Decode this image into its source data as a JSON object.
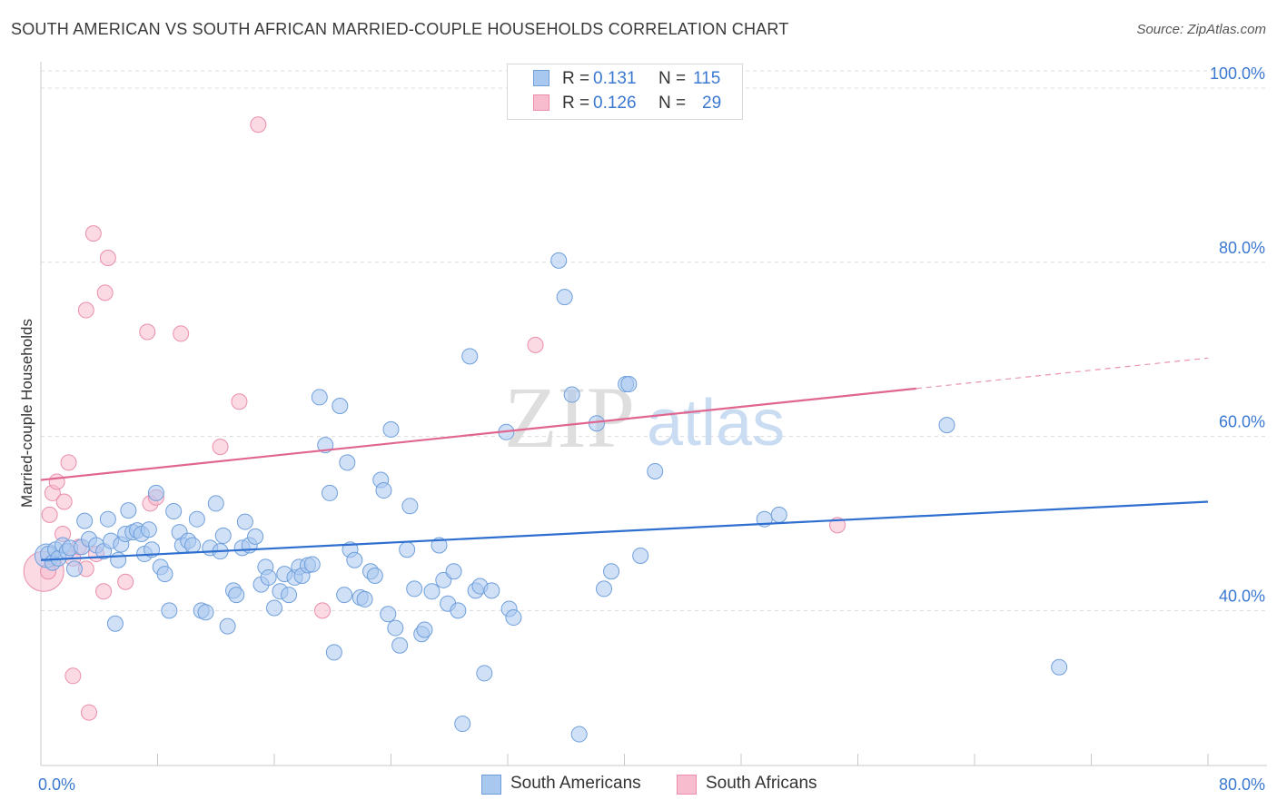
{
  "title": "SOUTH AMERICAN VS SOUTH AFRICAN MARRIED-COUPLE HOUSEHOLDS CORRELATION CHART",
  "source": "Source: ZipAtlas.com",
  "watermark": {
    "zip": "ZIP",
    "atlas": "atlas"
  },
  "legend": {
    "r_label": "R =",
    "n_label": "N =",
    "series": [
      {
        "r": "0.131",
        "n": "115"
      },
      {
        "r": "0.126",
        "n": "29"
      }
    ]
  },
  "colors": {
    "blue_fill": "#a9c8f0",
    "blue_stroke": "#6f9fdb",
    "blue_line": "#2f6fcf",
    "pink_fill": "#f7bccd",
    "pink_stroke": "#ea8eab",
    "pink_line": "#e0668f",
    "axis_label": "#3b78d0"
  },
  "chart_data": {
    "type": "scatter",
    "title": "SOUTH AMERICAN VS SOUTH AFRICAN MARRIED-COUPLE HOUSEHOLDS CORRELATION CHART",
    "xlabel": "",
    "ylabel": "Married-couple Households",
    "xlim": [
      0,
      80
    ],
    "ylim": [
      22,
      103
    ],
    "x_tick_labels": [
      "0.0%",
      "80.0%"
    ],
    "y_ticks": [
      40,
      60,
      80,
      100
    ],
    "y_tick_labels": [
      "40.0%",
      "60.0%",
      "80.0%",
      "100.0%"
    ],
    "grid": true,
    "legend_position": "top-center",
    "series": [
      {
        "name": "South Americans",
        "r": 0.131,
        "n": 115,
        "trend": {
          "x0": 0,
          "y0": 45.8,
          "x1": 80,
          "y1": 52.5,
          "solid_to": 80
        },
        "points": [
          [
            0.5,
            46.5
          ],
          [
            0.8,
            45.5
          ],
          [
            1.0,
            47
          ],
          [
            1.2,
            46
          ],
          [
            1.5,
            47.5
          ],
          [
            1.8,
            46.8
          ],
          [
            2.0,
            47.2
          ],
          [
            2.3,
            44.8
          ],
          [
            2.8,
            47.3
          ],
          [
            3.0,
            50.3
          ],
          [
            3.3,
            48.2
          ],
          [
            3.8,
            47.5
          ],
          [
            4.3,
            46.8
          ],
          [
            4.6,
            50.5
          ],
          [
            4.8,
            48
          ],
          [
            5.1,
            38.5
          ],
          [
            5.3,
            45.8
          ],
          [
            5.5,
            47.6
          ],
          [
            5.8,
            48.8
          ],
          [
            6.0,
            51.5
          ],
          [
            6.3,
            49
          ],
          [
            6.6,
            49.2
          ],
          [
            6.9,
            48.8
          ],
          [
            7.1,
            46.5
          ],
          [
            7.4,
            49.3
          ],
          [
            7.6,
            47
          ],
          [
            7.9,
            53.5
          ],
          [
            8.2,
            45
          ],
          [
            8.5,
            44.2
          ],
          [
            8.8,
            40
          ],
          [
            9.1,
            51.4
          ],
          [
            9.5,
            49
          ],
          [
            9.7,
            47.5
          ],
          [
            10.1,
            48
          ],
          [
            10.4,
            47.5
          ],
          [
            10.7,
            50.5
          ],
          [
            11.0,
            40
          ],
          [
            11.3,
            39.8
          ],
          [
            11.6,
            47.2
          ],
          [
            12.0,
            52.3
          ],
          [
            12.3,
            46.8
          ],
          [
            12.5,
            48.6
          ],
          [
            12.8,
            38.2
          ],
          [
            13.2,
            42.3
          ],
          [
            13.4,
            41.8
          ],
          [
            13.8,
            47.2
          ],
          [
            14.0,
            50.2
          ],
          [
            14.3,
            47.5
          ],
          [
            14.7,
            48.5
          ],
          [
            15.1,
            43
          ],
          [
            15.4,
            45
          ],
          [
            15.6,
            43.8
          ],
          [
            16.0,
            40.3
          ],
          [
            16.4,
            42.2
          ],
          [
            16.7,
            44.2
          ],
          [
            17.0,
            41.8
          ],
          [
            17.4,
            43.8
          ],
          [
            17.7,
            45
          ],
          [
            17.9,
            44
          ],
          [
            18.3,
            45.2
          ],
          [
            18.6,
            45.3
          ],
          [
            19.1,
            64.5
          ],
          [
            19.5,
            59
          ],
          [
            19.8,
            53.5
          ],
          [
            20.1,
            35.2
          ],
          [
            20.5,
            63.5
          ],
          [
            20.8,
            41.8
          ],
          [
            21.0,
            57
          ],
          [
            21.2,
            47
          ],
          [
            21.5,
            45.8
          ],
          [
            21.9,
            41.5
          ],
          [
            22.2,
            41.3
          ],
          [
            22.6,
            44.5
          ],
          [
            22.9,
            44
          ],
          [
            23.3,
            55
          ],
          [
            23.5,
            53.8
          ],
          [
            23.8,
            39.6
          ],
          [
            24.0,
            60.8
          ],
          [
            24.3,
            38
          ],
          [
            24.6,
            36
          ],
          [
            25.1,
            47
          ],
          [
            25.3,
            52
          ],
          [
            25.6,
            42.5
          ],
          [
            26.1,
            37.3
          ],
          [
            26.3,
            37.8
          ],
          [
            26.8,
            42.2
          ],
          [
            27.3,
            47.5
          ],
          [
            27.6,
            43.5
          ],
          [
            27.9,
            40.8
          ],
          [
            28.3,
            44.5
          ],
          [
            28.6,
            40
          ],
          [
            28.9,
            27
          ],
          [
            29.4,
            69.2
          ],
          [
            29.8,
            42.3
          ],
          [
            30.1,
            42.8
          ],
          [
            30.4,
            32.8
          ],
          [
            30.9,
            42.3
          ],
          [
            31.9,
            60.5
          ],
          [
            32.1,
            40.2
          ],
          [
            32.4,
            39.2
          ],
          [
            35.5,
            80.2
          ],
          [
            35.9,
            76
          ],
          [
            36.4,
            64.8
          ],
          [
            36.9,
            25.8
          ],
          [
            38.1,
            61.5
          ],
          [
            38.6,
            42.5
          ],
          [
            39.1,
            44.5
          ],
          [
            40.1,
            66
          ],
          [
            40.3,
            66
          ],
          [
            41.1,
            46.3
          ],
          [
            42.1,
            56
          ],
          [
            49.6,
            50.5
          ],
          [
            50.6,
            51
          ],
          [
            62.1,
            61.3
          ],
          [
            69.8,
            33.5
          ]
        ]
      },
      {
        "name": "South Africans",
        "r": 0.126,
        "n": 29,
        "trend": {
          "x0": 0,
          "y0": 55,
          "x1": 80,
          "y1": 69,
          "solid_to": 60
        },
        "points": [
          [
            0.5,
            44.5
          ],
          [
            0.6,
            51
          ],
          [
            0.8,
            53.5
          ],
          [
            1.1,
            54.8
          ],
          [
            1.5,
            48.8
          ],
          [
            1.6,
            52.5
          ],
          [
            1.9,
            57
          ],
          [
            2.2,
            46
          ],
          [
            2.6,
            47.3
          ],
          [
            3.1,
            44.8
          ],
          [
            3.1,
            74.5
          ],
          [
            3.6,
            83.3
          ],
          [
            3.8,
            46.5
          ],
          [
            4.4,
            76.5
          ],
          [
            4.6,
            80.5
          ],
          [
            5.8,
            43.3
          ],
          [
            7.3,
            72
          ],
          [
            7.5,
            52.3
          ],
          [
            7.9,
            53
          ],
          [
            9.6,
            71.8
          ],
          [
            12.3,
            58.8
          ],
          [
            13.6,
            64
          ],
          [
            14.9,
            95.8
          ],
          [
            19.3,
            40
          ],
          [
            33.9,
            70.5
          ],
          [
            54.6,
            49.8
          ],
          [
            4.3,
            42.2
          ],
          [
            2.2,
            32.5
          ],
          [
            3.3,
            28.3
          ]
        ]
      }
    ]
  }
}
